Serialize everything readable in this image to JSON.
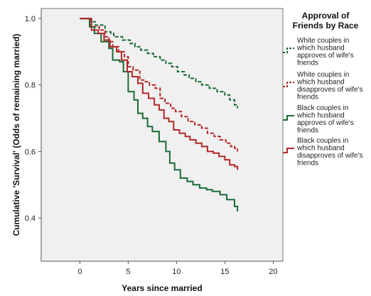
{
  "colors": {
    "plot_background": "#f0f0f0",
    "axis": "#555555",
    "white_approves": "#1a6b35",
    "white_disapproves": "#b22727",
    "black_approves": "#1a6b35",
    "black_disapproves": "#b22727"
  },
  "chart_data": {
    "type": "line",
    "step": true,
    "xlabel": "Years since married",
    "ylabel": "Cumulative 'Survival' (Odds of remaining married)",
    "xlim": [
      -4,
      21
    ],
    "ylim": [
      0.27,
      1.03
    ],
    "xticks": [
      0,
      5,
      10,
      15,
      20
    ],
    "yticks": [
      0.4,
      0.6,
      0.8,
      1.0
    ],
    "ytick_labels": [
      "0.4",
      "0.6",
      "0.8",
      "1.0"
    ],
    "grid": false,
    "legend": {
      "title_lines": [
        "Approval of",
        "Friends by Race"
      ],
      "placement": "right"
    },
    "series": [
      {
        "key": "white_approves",
        "name_lines": [
          "White couples in",
          "which husband",
          "approves of wife's",
          "friends"
        ],
        "color_key": "white_approves",
        "dash": true,
        "points": [
          [
            0,
            1.0
          ],
          [
            1.1,
            0.99
          ],
          [
            1.6,
            0.98
          ],
          [
            2.6,
            0.96
          ],
          [
            3.2,
            0.955
          ],
          [
            3.5,
            0.945
          ],
          [
            4.4,
            0.935
          ],
          [
            5.2,
            0.925
          ],
          [
            5.7,
            0.915
          ],
          [
            6.3,
            0.905
          ],
          [
            7.0,
            0.895
          ],
          [
            7.6,
            0.885
          ],
          [
            8.3,
            0.875
          ],
          [
            8.9,
            0.865
          ],
          [
            9.5,
            0.855
          ],
          [
            10.1,
            0.84
          ],
          [
            10.8,
            0.83
          ],
          [
            11.3,
            0.82
          ],
          [
            12.0,
            0.81
          ],
          [
            12.6,
            0.8
          ],
          [
            13.4,
            0.79
          ],
          [
            14.2,
            0.78
          ],
          [
            15.0,
            0.77
          ],
          [
            15.5,
            0.755
          ],
          [
            16.0,
            0.745
          ],
          [
            16.0,
            0.74
          ],
          [
            16.3,
            0.74
          ],
          [
            16.3,
            0.73
          ]
        ]
      },
      {
        "key": "white_disapproves",
        "name_lines": [
          "White couples in",
          "which husband",
          "disapproves of wife's",
          "friends"
        ],
        "color_key": "white_disapproves",
        "dash": true,
        "points": [
          [
            0,
            1.0
          ],
          [
            1.1,
            0.975
          ],
          [
            2.0,
            0.965
          ],
          [
            2.6,
            0.945
          ],
          [
            3.0,
            0.93
          ],
          [
            3.4,
            0.915
          ],
          [
            4.0,
            0.9
          ],
          [
            4.6,
            0.885
          ],
          [
            5.0,
            0.855
          ],
          [
            5.5,
            0.845
          ],
          [
            6.2,
            0.815
          ],
          [
            6.6,
            0.81
          ],
          [
            7.2,
            0.8
          ],
          [
            7.8,
            0.79
          ],
          [
            8.3,
            0.76
          ],
          [
            8.8,
            0.745
          ],
          [
            9.4,
            0.73
          ],
          [
            9.9,
            0.72
          ],
          [
            10.5,
            0.705
          ],
          [
            11.2,
            0.69
          ],
          [
            11.9,
            0.68
          ],
          [
            12.6,
            0.67
          ],
          [
            13.2,
            0.655
          ],
          [
            13.9,
            0.645
          ],
          [
            14.5,
            0.635
          ],
          [
            15.1,
            0.625
          ],
          [
            15.6,
            0.615
          ],
          [
            16.0,
            0.61
          ],
          [
            16.3,
            0.6
          ]
        ]
      },
      {
        "key": "black_approves",
        "name_lines": [
          "Black couples in",
          "which husband",
          "approves of wife's",
          "friends"
        ],
        "color_key": "black_approves",
        "dash": false,
        "points": [
          [
            0,
            1.0
          ],
          [
            1.0,
            0.975
          ],
          [
            1.5,
            0.955
          ],
          [
            2.2,
            0.93
          ],
          [
            3.0,
            0.91
          ],
          [
            3.4,
            0.875
          ],
          [
            4.1,
            0.87
          ],
          [
            4.5,
            0.84
          ],
          [
            5.0,
            0.78
          ],
          [
            5.6,
            0.755
          ],
          [
            6.0,
            0.715
          ],
          [
            6.5,
            0.7
          ],
          [
            7.0,
            0.675
          ],
          [
            7.5,
            0.66
          ],
          [
            8.2,
            0.63
          ],
          [
            8.9,
            0.6
          ],
          [
            9.3,
            0.565
          ],
          [
            9.8,
            0.545
          ],
          [
            10.4,
            0.52
          ],
          [
            11.1,
            0.51
          ],
          [
            11.7,
            0.5
          ],
          [
            12.4,
            0.49
          ],
          [
            13.1,
            0.485
          ],
          [
            13.7,
            0.48
          ],
          [
            14.5,
            0.47
          ],
          [
            15.2,
            0.455
          ],
          [
            16.0,
            0.435
          ],
          [
            16.3,
            0.42
          ]
        ]
      },
      {
        "key": "black_disapproves",
        "name_lines": [
          "Black couples in",
          "which husband",
          "disapproves of wife's",
          "friends"
        ],
        "color_key": "black_disapproves",
        "dash": false,
        "points": [
          [
            0,
            1.0
          ],
          [
            1.2,
            0.965
          ],
          [
            1.9,
            0.955
          ],
          [
            2.5,
            0.935
          ],
          [
            3.1,
            0.915
          ],
          [
            3.8,
            0.9
          ],
          [
            4.3,
            0.875
          ],
          [
            4.9,
            0.84
          ],
          [
            5.4,
            0.825
          ],
          [
            6.0,
            0.805
          ],
          [
            6.5,
            0.775
          ],
          [
            7.1,
            0.76
          ],
          [
            7.7,
            0.74
          ],
          [
            8.2,
            0.725
          ],
          [
            8.7,
            0.7
          ],
          [
            9.2,
            0.69
          ],
          [
            9.7,
            0.665
          ],
          [
            10.3,
            0.655
          ],
          [
            10.9,
            0.645
          ],
          [
            11.4,
            0.635
          ],
          [
            12.0,
            0.625
          ],
          [
            12.6,
            0.615
          ],
          [
            13.2,
            0.6
          ],
          [
            13.8,
            0.595
          ],
          [
            14.4,
            0.585
          ],
          [
            15.0,
            0.575
          ],
          [
            15.5,
            0.56
          ],
          [
            16.0,
            0.555
          ],
          [
            16.3,
            0.545
          ]
        ]
      }
    ]
  }
}
